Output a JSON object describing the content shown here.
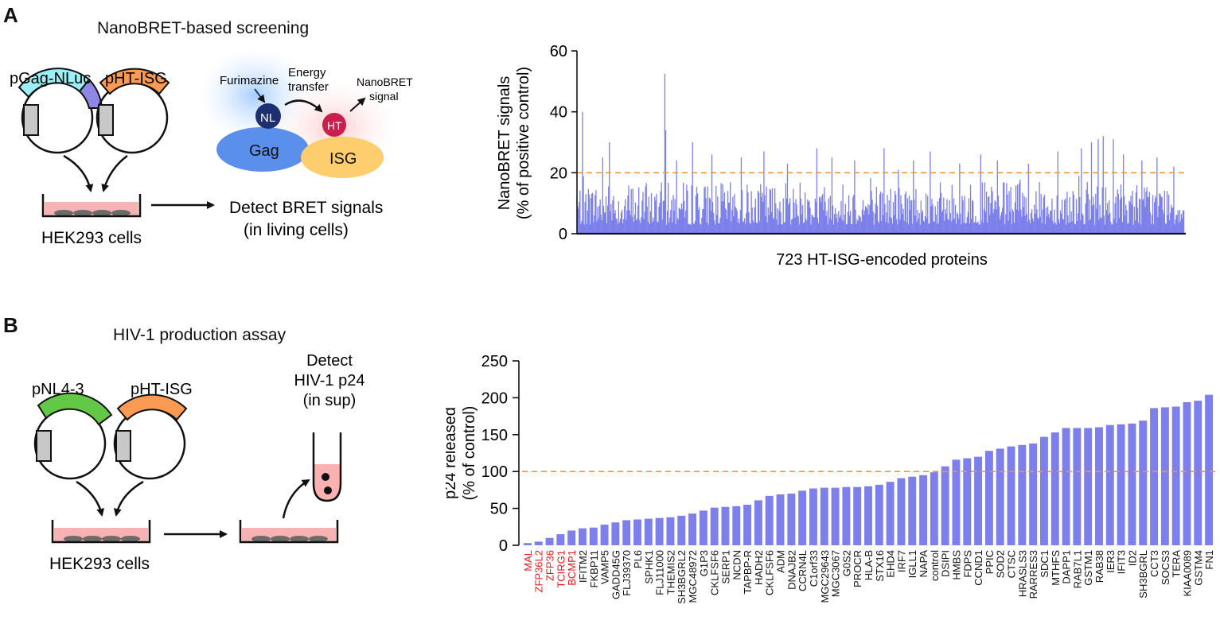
{
  "panel_a": {
    "letter": "A",
    "title": "NanoBRET-based screening",
    "plasmid_1": "pGag-NLuc",
    "plasmid_2": "pHT-ISG",
    "substrate": "Furimazine",
    "energy_transfer": "Energy\ntransfer",
    "signal": "NanoBRET\nsignal",
    "nl": "NL",
    "ht": "HT",
    "gag": "Gag",
    "isg": "ISG",
    "cells": "HEK293 cells",
    "detect": "Detect BRET signals\n(in living cells)"
  },
  "panel_b": {
    "letter": "B",
    "title": "HIV-1 production assay",
    "plasmid_1": "pNL4-3",
    "plasmid_2": "pHT-ISG",
    "detect": "Detect\nHIV-1 p24\n(in sup)",
    "cells": "HEK293 cells"
  },
  "colors": {
    "bar": "#7d80ec",
    "threshold": "#f5962a",
    "hit_label": "#e8191a",
    "plasmid_cyan": "#9ceff6",
    "plasmid_purple": "#8d88e6",
    "plasmid_orange": "#fb9a52",
    "plasmid_green": "#62c845",
    "dish": "#f7b3b3"
  },
  "chart_data": [
    {
      "type": "bar",
      "title": "",
      "xlabel": "723 HT-ISG-encoded proteins",
      "ylabel": "NanoBRET signals\n(% of positive control)",
      "ylim": [
        0,
        60
      ],
      "yticks": [
        0,
        20,
        40,
        60
      ],
      "threshold": 20,
      "n_bars": 723,
      "highlights": [
        {
          "index": 6,
          "value": 40
        },
        {
          "index": 30,
          "value": 25
        },
        {
          "index": 38,
          "value": 30
        },
        {
          "index": 104,
          "value": 52.5
        },
        {
          "index": 105,
          "value": 34
        },
        {
          "index": 118,
          "value": 24
        },
        {
          "index": 137,
          "value": 30
        },
        {
          "index": 160,
          "value": 26
        },
        {
          "index": 195,
          "value": 25
        },
        {
          "index": 222,
          "value": 27
        },
        {
          "index": 250,
          "value": 23
        },
        {
          "index": 285,
          "value": 28
        },
        {
          "index": 303,
          "value": 25
        },
        {
          "index": 330,
          "value": 24
        },
        {
          "index": 365,
          "value": 28
        },
        {
          "index": 382,
          "value": 21
        },
        {
          "index": 400,
          "value": 24
        },
        {
          "index": 420,
          "value": 27
        },
        {
          "index": 455,
          "value": 23
        },
        {
          "index": 480,
          "value": 26
        },
        {
          "index": 500,
          "value": 24
        },
        {
          "index": 537,
          "value": 23
        },
        {
          "index": 572,
          "value": 27
        },
        {
          "index": 600,
          "value": 28
        },
        {
          "index": 612,
          "value": 30
        },
        {
          "index": 620,
          "value": 31
        },
        {
          "index": 626,
          "value": 32
        },
        {
          "index": 638,
          "value": 31
        },
        {
          "index": 650,
          "value": 26
        },
        {
          "index": 672,
          "value": 24
        },
        {
          "index": 690,
          "value": 25
        },
        {
          "index": 710,
          "value": 22
        }
      ],
      "baseline_range": [
        3,
        17
      ]
    },
    {
      "type": "bar",
      "title": "",
      "xlabel": "",
      "ylabel": "p24 released\n(% of control)",
      "ylim": [
        0,
        250
      ],
      "yticks": [
        0,
        50,
        100,
        150,
        200,
        250
      ],
      "threshold": 100,
      "categories": [
        "MAL",
        "ZFP36L2",
        "ZFP36",
        "TCIRG1",
        "BCMP1",
        "IFITM2",
        "FKBP11",
        "VAMP5",
        "GADD45G",
        "FLJ39370",
        "PL6",
        "SPHK1",
        "FLJ11000",
        "THEMIS2",
        "SH3BGRL2",
        "MGC48972",
        "G1P3",
        "CKLFSF6",
        "SERP1",
        "NCDN",
        "TAPBP-R",
        "HADH2",
        "CKLFSF6",
        "ADM",
        "DNAJB2",
        "CCRN4L",
        "C1orf33",
        "MGC29643",
        "MGC3067",
        "G0S2",
        "PROCR",
        "HLA-B",
        "STX16",
        "EHD4",
        "IRF7",
        "IGLL1",
        "NAPA",
        "control",
        "DSIPI",
        "HMBS",
        "FDPS",
        "CCND1",
        "PPIC",
        "SOD2",
        "CTSC",
        "HRASLS3",
        "RARRES3",
        "SDC1",
        "MTHFS",
        "DAPP1",
        "RAB7L1",
        "GSTM1",
        "RAB38",
        "IER3",
        "IFIT3",
        "ID2",
        "SH3BGRL",
        "CCT3",
        "SOCS3",
        "TERA",
        "KIAA0089",
        "GSTM4",
        "FN1"
      ],
      "values": [
        3,
        5,
        10,
        15,
        20,
        23,
        24,
        28,
        31,
        34,
        35,
        36,
        37,
        38,
        40,
        43,
        47,
        51,
        52,
        53,
        55,
        61,
        67,
        69,
        70,
        74,
        77,
        78,
        78,
        79,
        79,
        80,
        82,
        86,
        91,
        93,
        95,
        99,
        107,
        116,
        118,
        120,
        128,
        131,
        134,
        136,
        138,
        147,
        153,
        159,
        159,
        159,
        160,
        163,
        164,
        165,
        169,
        186,
        187,
        188,
        194,
        196,
        204
      ],
      "hits": [
        "MAL",
        "ZFP36L2",
        "ZFP36",
        "TCIRG1",
        "BCMP1"
      ]
    }
  ]
}
